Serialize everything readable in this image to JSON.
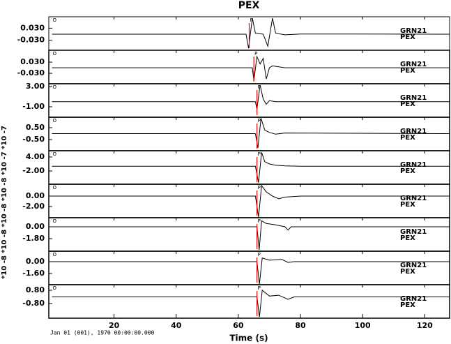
{
  "figure": {
    "title": "PEX",
    "xlabel": "Time (s)",
    "date_label": "Jan 01 (001), 1970 00:00:00.000",
    "y_multiplier_label": "*10 -8 *10 -8 *10 -8 *10 -8 *10 -7 *10 -7",
    "xlim": [
      -1,
      128
    ],
    "xticks": [
      20,
      40,
      60,
      80,
      100,
      120
    ]
  },
  "chart_data": [
    {
      "type": "line",
      "color": "#000000",
      "station_labels": [
        "GRN21",
        "PEX"
      ],
      "ylim": [
        -0.08,
        0.087
      ],
      "yticks": [
        {
          "value": 0.03,
          "label": "0.030"
        },
        {
          "value": -0.03,
          "label": "-0.030"
        }
      ],
      "picks": [
        {
          "label": "O",
          "time": 0
        },
        {
          "label": "P",
          "time": 63.5
        }
      ],
      "x": [
        0,
        62.5,
        63.3,
        64.5,
        65.5,
        68,
        69.5,
        71,
        72,
        75,
        80,
        128
      ],
      "values": [
        0,
        0,
        -0.07,
        0.08,
        0.005,
        0,
        -0.06,
        0.08,
        0.005,
        -0.003,
        0.001,
        0
      ]
    },
    {
      "type": "line",
      "color": "#000000",
      "station_labels": [
        "GRN21",
        "PEX"
      ],
      "ylim": [
        -0.086,
        0.094
      ],
      "yticks": [
        {
          "value": 0.03,
          "label": "0.030"
        },
        {
          "value": -0.03,
          "label": "-0.030"
        }
      ],
      "picks": [
        {
          "label": "O",
          "time": 0
        },
        {
          "label": "P",
          "time": 65
        }
      ],
      "x": [
        0,
        64.5,
        65,
        66,
        67,
        68,
        69,
        70,
        71,
        75,
        128
      ],
      "values": [
        0,
        0,
        -0.07,
        0.06,
        0.02,
        0.05,
        -0.06,
        0,
        0.01,
        0,
        0
      ]
    },
    {
      "type": "line",
      "color": "#000000",
      "station_labels": [
        "GRN21",
        "PEX"
      ],
      "ylim": [
        -3.07,
        3.55
      ],
      "yticks": [
        {
          "value": 3,
          "label": "3.00"
        },
        {
          "value": -1,
          "label": "-1.00"
        }
      ],
      "picks": [
        {
          "label": "O",
          "time": 0
        },
        {
          "label": "P",
          "time": 66
        }
      ],
      "x": [
        0,
        65.5,
        66,
        67,
        68,
        69,
        70,
        72,
        128
      ],
      "values": [
        0,
        0,
        -1.5,
        3.3,
        0.5,
        -0.5,
        0.2,
        0,
        0
      ]
    },
    {
      "type": "line",
      "color": "#000000",
      "station_labels": [
        "GRN21",
        "PEX"
      ],
      "ylim": [
        -1.44,
        1.38
      ],
      "yticks": [
        {
          "value": 0.5,
          "label": "0.50"
        },
        {
          "value": -0.5,
          "label": "-0.50"
        }
      ],
      "picks": [
        {
          "label": "O",
          "time": 0
        },
        {
          "label": "P",
          "time": 66
        }
      ],
      "x": [
        0,
        65.5,
        66.3,
        67.3,
        68.5,
        70,
        72,
        75,
        128
      ],
      "values": [
        0,
        0,
        -1.2,
        1.3,
        0.3,
        0.1,
        -0.05,
        0.05,
        0
      ]
    },
    {
      "type": "line",
      "color": "#000000",
      "station_labels": [
        "GRN21",
        "PEX"
      ],
      "ylim": [
        -7.7,
        6.7
      ],
      "yticks": [
        {
          "value": 4,
          "label": "4.00"
        },
        {
          "value": -2,
          "label": "-2.00"
        }
      ],
      "picks": [
        {
          "label": "O",
          "time": 0
        },
        {
          "label": "P",
          "time": 66
        }
      ],
      "x": [
        0,
        65.5,
        66.5,
        67.5,
        68.5,
        70,
        72,
        75,
        80,
        128
      ],
      "values": [
        0,
        0,
        -7,
        6,
        2,
        1,
        0.5,
        0.2,
        0,
        0
      ]
    },
    {
      "type": "line",
      "color": "#000000",
      "station_labels": [
        "GRN21",
        "PEX"
      ],
      "ylim": [
        -4.13,
        2.27
      ],
      "yticks": [
        {
          "value": 0,
          "label": "0.00"
        },
        {
          "value": -2,
          "label": "-2.00"
        }
      ],
      "picks": [
        {
          "label": "O",
          "time": 0
        },
        {
          "label": "P",
          "time": 66
        }
      ],
      "x": [
        0,
        65.5,
        66.5,
        67.5,
        69,
        71,
        73,
        75,
        80,
        128
      ],
      "values": [
        0,
        0,
        -4,
        2,
        0.8,
        0,
        -0.5,
        -0.2,
        0,
        0
      ]
    },
    {
      "type": "line",
      "color": "#000000",
      "station_labels": [
        "GRN21",
        "PEX"
      ],
      "ylim": [
        -3.71,
        1.38
      ],
      "yticks": [
        {
          "value": 0,
          "label": "0.00"
        },
        {
          "value": -1.8,
          "label": "-1.80"
        }
      ],
      "picks": [
        {
          "label": "O",
          "time": 0
        },
        {
          "label": "P",
          "time": 66
        }
      ],
      "x": [
        0,
        66,
        66.7,
        67.5,
        69,
        72,
        75,
        76,
        77,
        128
      ],
      "values": [
        0,
        0,
        -3.5,
        0.9,
        0.5,
        0.3,
        0,
        -0.5,
        0,
        0
      ]
    },
    {
      "type": "line",
      "color": "#000000",
      "station_labels": [
        "GRN21",
        "PEX"
      ],
      "ylim": [
        -3.1,
        1.41
      ],
      "yticks": [
        {
          "value": 0,
          "label": "0.00"
        },
        {
          "value": -1.6,
          "label": "-1.60"
        }
      ],
      "picks": [
        {
          "label": "O",
          "time": 0
        },
        {
          "label": "P",
          "time": 66
        }
      ],
      "x": [
        0,
        66,
        66.8,
        67.7,
        70,
        74,
        76,
        78,
        128
      ],
      "values": [
        0,
        0,
        -3,
        0.5,
        0.2,
        0.3,
        -0.1,
        0,
        0
      ]
    },
    {
      "type": "line",
      "color": "#000000",
      "station_labels": [
        "GRN21",
        "PEX"
      ],
      "ylim": [
        -2.57,
        1.47
      ],
      "yticks": [
        {
          "value": 0.8,
          "label": "0.80"
        },
        {
          "value": -0.8,
          "label": "-0.80"
        }
      ],
      "picks": [
        {
          "label": "O",
          "time": 0
        },
        {
          "label": "P",
          "time": 66
        }
      ],
      "x": [
        0,
        66,
        66.8,
        67.7,
        70,
        73,
        76,
        78,
        128
      ],
      "values": [
        0,
        0,
        -2.4,
        0.8,
        0.1,
        0.2,
        -0.3,
        0,
        0
      ]
    }
  ]
}
